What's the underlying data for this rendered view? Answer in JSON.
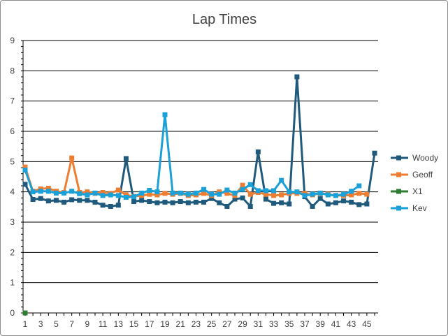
{
  "chart_data": {
    "type": "line",
    "title": "Lap Times",
    "xlabel": "",
    "ylabel": "",
    "ylim": [
      0,
      9
    ],
    "yticks": [
      0,
      1,
      2,
      3,
      4,
      5,
      6,
      7,
      8,
      9
    ],
    "xlim": [
      1,
      46
    ],
    "xtick_labels": [
      1,
      3,
      5,
      7,
      9,
      11,
      13,
      15,
      17,
      19,
      21,
      23,
      25,
      27,
      29,
      31,
      33,
      35,
      37,
      39,
      41,
      43,
      45
    ],
    "grid": "horizontal",
    "legend_position": "right",
    "series": [
      {
        "name": "Woody",
        "color": "#1f5a7d",
        "values": [
          4.25,
          3.75,
          3.78,
          3.7,
          3.72,
          3.66,
          3.74,
          3.72,
          3.72,
          3.66,
          3.56,
          3.52,
          3.56,
          5.1,
          3.68,
          3.72,
          3.68,
          3.64,
          3.66,
          3.64,
          3.68,
          3.64,
          3.66,
          3.66,
          3.78,
          3.64,
          3.52,
          3.76,
          3.8,
          3.52,
          5.32,
          3.76,
          3.62,
          3.64,
          3.6,
          7.8,
          3.84,
          3.52,
          3.78,
          3.6,
          3.64,
          3.7,
          3.66,
          3.58,
          3.6,
          5.28
        ]
      },
      {
        "name": "Geoff",
        "color": "#ed7d31",
        "values": [
          4.82,
          4.02,
          4.1,
          4.12,
          4.02,
          3.98,
          5.12,
          3.98,
          4.0,
          3.95,
          3.98,
          3.95,
          4.06,
          3.9,
          3.85,
          3.88,
          3.92,
          3.9,
          3.95,
          3.92,
          3.95,
          3.88,
          3.9,
          3.95,
          3.88,
          4.0,
          3.95,
          3.88,
          4.22,
          3.92,
          3.98,
          3.92,
          3.88,
          3.9,
          3.95,
          3.95,
          3.95,
          3.9,
          3.95,
          3.92,
          3.88,
          3.88,
          3.9,
          3.95,
          3.92
        ]
      },
      {
        "name": "X1",
        "color": "#2e7d32",
        "values": [
          0
        ]
      },
      {
        "name": "Kev",
        "color": "#1ba1d8",
        "values": [
          4.72,
          4.0,
          4.02,
          4.02,
          3.96,
          3.96,
          4.02,
          3.94,
          3.9,
          3.96,
          3.88,
          3.9,
          3.88,
          3.82,
          3.84,
          3.96,
          4.05,
          4.0,
          6.55,
          3.96,
          3.96,
          3.92,
          3.96,
          4.08,
          3.92,
          3.92,
          4.06,
          3.96,
          4.08,
          4.24,
          4.04,
          4.04,
          4.04,
          4.38,
          4.0,
          4.0,
          3.88,
          3.92,
          3.96,
          3.9,
          3.88,
          3.92,
          4.02,
          4.2
        ]
      }
    ]
  }
}
